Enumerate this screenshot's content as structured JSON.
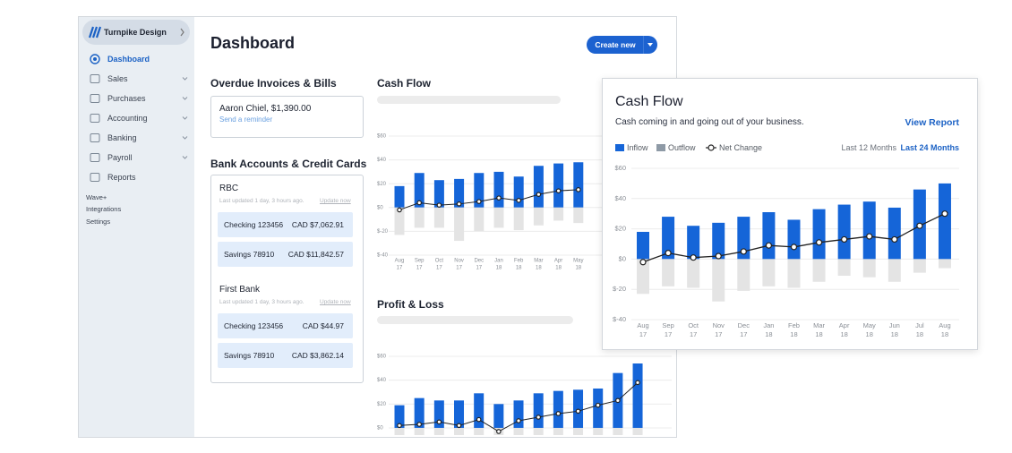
{
  "sidebar": {
    "brand": "Turnpike Design",
    "nav": [
      "Dashboard",
      "Sales",
      "Purchases",
      "Accounting",
      "Banking",
      "Payroll",
      "Reports"
    ],
    "extra": [
      "Wave+",
      "Integrations",
      "Settings"
    ]
  },
  "dashboard": {
    "title": "Dashboard",
    "create_button": "Create new",
    "overdue": {
      "title": "Overdue Invoices & Bills",
      "item": "Aaron Chiel, $1,390.00",
      "action": "Send a reminder"
    },
    "banks": {
      "title": "Bank Accounts & Credit Cards",
      "accounts": [
        {
          "name": "RBC",
          "updated": "Last updated 1 day, 3 hours ago.",
          "update_link": "Update now",
          "rows": [
            [
              "Checking 123456",
              "CAD $7,062.91"
            ],
            [
              "Savings 78910",
              "CAD $11,842.57"
            ]
          ]
        },
        {
          "name": "First Bank",
          "updated": "Last updated 1 day, 3 hours ago.",
          "update_link": "Update now",
          "rows": [
            [
              "Checking 123456",
              "CAD $44.97"
            ],
            [
              "Savings 78910",
              "CAD $3,862.14"
            ]
          ]
        }
      ]
    },
    "cash_flow_title": "Cash Flow",
    "cash_flow_chart": {
      "type": "bar",
      "x_labels": [
        [
          "Aug",
          "17"
        ],
        [
          "Sep",
          "17"
        ],
        [
          "Oct",
          "17"
        ],
        [
          "Nov",
          "17"
        ],
        [
          "Dec",
          "17"
        ],
        [
          "Jan",
          "18"
        ],
        [
          "Feb",
          "18"
        ],
        [
          "Mar",
          "18"
        ],
        [
          "Apr",
          "18"
        ],
        [
          "May",
          "18"
        ]
      ],
      "series": [
        {
          "kind": "bar",
          "color": "#1565d8",
          "values": [
            18,
            29,
            23,
            24,
            29,
            30,
            26,
            35,
            37,
            38
          ]
        },
        {
          "kind": "bar",
          "color": "#e4e4e4",
          "values": [
            -23,
            -17,
            -17,
            -28,
            -20,
            -17,
            -19,
            -15,
            -11,
            -13
          ]
        },
        {
          "kind": "line",
          "color": "#222222",
          "values": [
            -2,
            4,
            2,
            3,
            5,
            8,
            6,
            11,
            14,
            15
          ]
        }
      ],
      "ylim": [
        -40,
        60
      ],
      "yticks": [
        {
          "value": 60,
          "label": "$60"
        },
        {
          "value": 40,
          "label": "$40"
        },
        {
          "value": 20,
          "label": "$20"
        },
        {
          "value": 0,
          "label": "$0"
        },
        {
          "value": -20,
          "label": "$-20"
        },
        {
          "value": -40,
          "label": "$-40"
        }
      ],
      "grid": true
    },
    "profit_loss_title": "Profit & Loss",
    "profit_loss_chart": {
      "type": "bar",
      "series": [
        {
          "kind": "bar",
          "color": "#1565d8",
          "values": [
            19,
            25,
            23,
            23,
            29,
            20,
            23,
            29,
            31,
            32,
            33,
            46,
            54
          ]
        },
        {
          "kind": "bar",
          "color": "#e4e4e4",
          "values": [
            -6,
            -6,
            -6,
            -6,
            -6,
            -6,
            -6,
            -6,
            -6,
            -6,
            -6,
            -6,
            -6
          ]
        },
        {
          "kind": "line",
          "color": "#222222",
          "values": [
            2,
            3,
            5,
            2,
            7,
            -3,
            6,
            9,
            12,
            14,
            19,
            23,
            38
          ]
        }
      ],
      "ylim": [
        -7,
        60
      ],
      "yticks": [
        {
          "value": 60,
          "label": "$60"
        },
        {
          "value": 40,
          "label": "$40"
        },
        {
          "value": 20,
          "label": "$20"
        },
        {
          "value": 0,
          "label": "$0"
        }
      ],
      "grid": true
    }
  },
  "cash_flow_panel": {
    "title": "Cash Flow",
    "subtitle": "Cash coming in and going out of your business.",
    "link": "View Report",
    "ranges": [
      "Last 12 Months",
      "Last 24 Months"
    ],
    "chart": {
      "type": "bar",
      "x_labels": [
        [
          "Aug",
          "17"
        ],
        [
          "Sep",
          "17"
        ],
        [
          "Oct",
          "17"
        ],
        [
          "Nov",
          "17"
        ],
        [
          "Dec",
          "17"
        ],
        [
          "Jan",
          "18"
        ],
        [
          "Feb",
          "18"
        ],
        [
          "Mar",
          "18"
        ],
        [
          "Apr",
          "18"
        ],
        [
          "May",
          "18"
        ],
        [
          "Jun",
          "18"
        ],
        [
          "Jul",
          "18"
        ],
        [
          "Aug",
          "18"
        ]
      ],
      "series": [
        {
          "name": "Inflow",
          "kind": "bar",
          "color": "#1565d8",
          "legend_color": "#1565d8",
          "values": [
            18,
            28,
            22,
            24,
            28,
            31,
            26,
            33,
            36,
            38,
            34,
            46,
            50
          ]
        },
        {
          "name": "Outflow",
          "kind": "bar",
          "color": "#e4e4e4",
          "legend_color": "#8e9aa6",
          "values": [
            -23,
            -18,
            -19,
            -28,
            -21,
            -18,
            -19,
            -15,
            -11,
            -12,
            -15,
            -9,
            -6
          ]
        },
        {
          "name": "Net Change",
          "kind": "line",
          "color": "#222222",
          "legend_color": "#222222",
          "values": [
            -2,
            4,
            1,
            2,
            5,
            9,
            8,
            11,
            13,
            15,
            13,
            22,
            30
          ]
        }
      ],
      "ylim": [
        -40,
        60
      ],
      "yticks": [
        {
          "value": 60,
          "label": "$60"
        },
        {
          "value": 40,
          "label": "$40"
        },
        {
          "value": 20,
          "label": "$20"
        },
        {
          "value": 0,
          "label": "$0"
        },
        {
          "value": -20,
          "label": "$-20"
        },
        {
          "value": -40,
          "label": "$-40"
        }
      ],
      "grid": true
    }
  }
}
